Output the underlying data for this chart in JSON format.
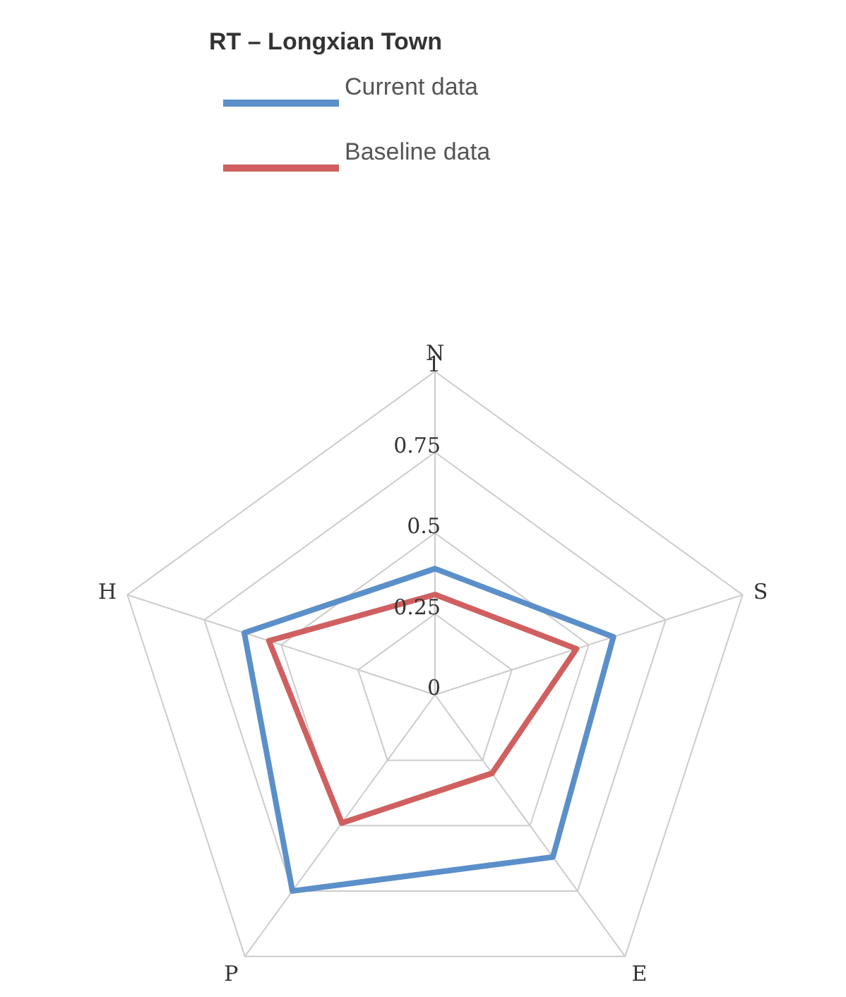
{
  "chart_data": {
    "type": "radar",
    "title": "RT – Longxian Town",
    "categories": [
      "N",
      "S",
      "E",
      "P",
      "H"
    ],
    "series": [
      {
        "name": "Current data",
        "color": "#5b8fc9",
        "values": [
          0.39,
          0.58,
          0.62,
          0.75,
          0.62
        ]
      },
      {
        "name": "Baseline data",
        "color": "#d06060",
        "values": [
          0.31,
          0.46,
          0.3,
          0.49,
          0.54
        ]
      }
    ],
    "ylim": [
      0,
      1
    ],
    "yticks": [
      0,
      0.25,
      0.5,
      0.75,
      1
    ],
    "legend": "top left",
    "grid": true,
    "marker": "none",
    "line_style": "solid"
  }
}
